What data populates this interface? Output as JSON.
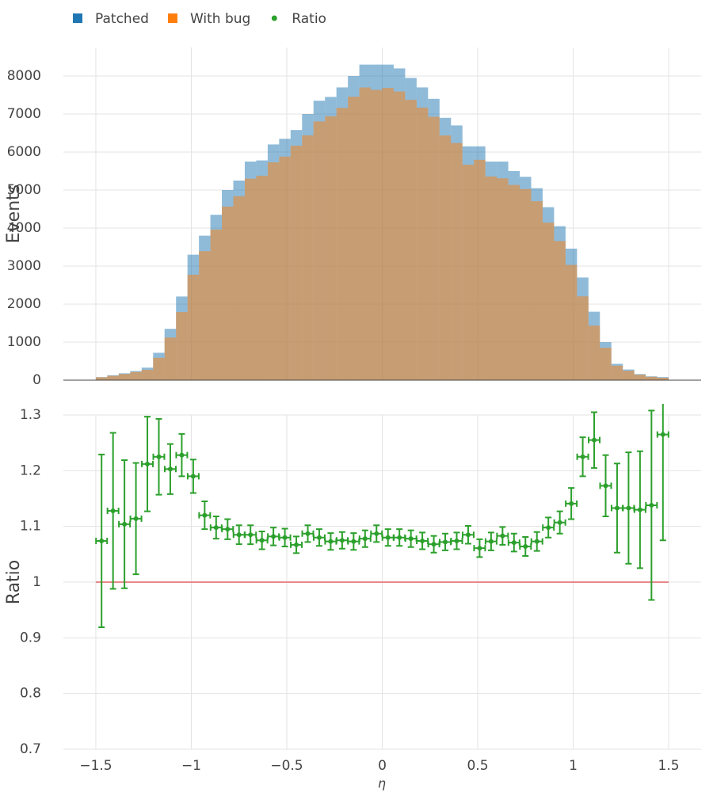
{
  "chart_data": [
    {
      "type": "histogram",
      "ylabel": "Events",
      "bins": [
        -1.5,
        -1.44,
        -1.38,
        -1.32,
        -1.26,
        -1.2,
        -1.14,
        -1.08,
        -1.02,
        -0.96,
        -0.9,
        -0.84,
        -0.78,
        -0.72,
        -0.66,
        -0.6,
        -0.54,
        -0.48,
        -0.42,
        -0.36,
        -0.3,
        -0.24,
        -0.18,
        -0.12,
        -0.06,
        0,
        0.06,
        0.12,
        0.18,
        0.24,
        0.3,
        0.36,
        0.42,
        0.48,
        0.54,
        0.6,
        0.66,
        0.72,
        0.78,
        0.84,
        0.9,
        0.96,
        1.02,
        1.08,
        1.14,
        1.2,
        1.26,
        1.32,
        1.38,
        1.44,
        1.5
      ],
      "series": [
        {
          "name": "Patched",
          "color": "#1f77b4",
          "values": [
            80,
            130,
            180,
            240,
            330,
            720,
            1350,
            2200,
            3300,
            3800,
            4350,
            5000,
            5250,
            5750,
            5780,
            6200,
            6350,
            6580,
            7000,
            7350,
            7450,
            7700,
            8000,
            8300,
            8300,
            8300,
            8200,
            7950,
            7700,
            7400,
            6900,
            6700,
            6150,
            6150,
            5750,
            5750,
            5500,
            5350,
            5050,
            4550,
            4050,
            3460,
            2700,
            1800,
            1000,
            430,
            280,
            160,
            100,
            80
          ]
        },
        {
          "name": "With bug",
          "color": "#ff7f0e",
          "values": [
            74,
            115,
            163,
            215,
            272,
            588,
            1122,
            1792,
            2773,
            3393,
            3962,
            4566,
            4839,
            5300,
            5377,
            5730,
            5880,
            6167,
            6440,
            6806,
            6943,
            7163,
            7456,
            7699,
            7636,
            7685,
            7593,
            7375,
            7169,
            6929,
            6437,
            6238,
            5668,
            5796,
            5359,
            5309,
            5135,
            5028,
            4706,
            4144,
            3659,
            3032,
            2204,
            1434,
            853,
            380,
            247,
            142,
            88,
            63
          ]
        }
      ],
      "xlim": [
        -1.67,
        1.67
      ],
      "ylim": [
        0,
        8750
      ],
      "yticks": [
        0,
        1000,
        2000,
        3000,
        4000,
        5000,
        6000,
        7000,
        8000
      ],
      "grid": true
    },
    {
      "type": "errorbar",
      "ylabel": "Ratio",
      "xlabel": "η",
      "series": [
        {
          "name": "Ratio",
          "color": "#2ca02c",
          "x": [
            -1.47,
            -1.41,
            -1.35,
            -1.29,
            -1.23,
            -1.17,
            -1.11,
            -1.05,
            -0.99,
            -0.93,
            -0.87,
            -0.81,
            -0.75,
            -0.69,
            -0.63,
            -0.57,
            -0.51,
            -0.45,
            -0.39,
            -0.33,
            -0.27,
            -0.21,
            -0.15,
            -0.09,
            -0.03,
            0.03,
            0.09,
            0.15,
            0.21,
            0.27,
            0.33,
            0.39,
            0.45,
            0.51,
            0.57,
            0.63,
            0.69,
            0.75,
            0.81,
            0.87,
            0.93,
            0.99,
            1.05,
            1.11,
            1.17,
            1.23,
            1.29,
            1.35,
            1.41,
            1.47
          ],
          "values": [
            1.074,
            1.128,
            1.104,
            1.114,
            1.212,
            1.225,
            1.203,
            1.228,
            1.19,
            1.12,
            1.098,
            1.095,
            1.085,
            1.085,
            1.075,
            1.082,
            1.08,
            1.067,
            1.087,
            1.08,
            1.073,
            1.075,
            1.073,
            1.078,
            1.087,
            1.08,
            1.08,
            1.078,
            1.074,
            1.068,
            1.072,
            1.074,
            1.085,
            1.061,
            1.073,
            1.083,
            1.071,
            1.064,
            1.073,
            1.098,
            1.107,
            1.141,
            1.225,
            1.255,
            1.173,
            1.133,
            1.133,
            1.13,
            1.138,
            1.265
          ],
          "errors": [
            0.155,
            0.14,
            0.115,
            0.1,
            0.085,
            0.068,
            0.045,
            0.038,
            0.03,
            0.025,
            0.02,
            0.018,
            0.017,
            0.017,
            0.016,
            0.016,
            0.016,
            0.015,
            0.015,
            0.015,
            0.015,
            0.015,
            0.015,
            0.015,
            0.015,
            0.015,
            0.015,
            0.015,
            0.015,
            0.015,
            0.015,
            0.015,
            0.016,
            0.016,
            0.016,
            0.016,
            0.016,
            0.017,
            0.017,
            0.018,
            0.02,
            0.028,
            0.035,
            0.05,
            0.055,
            0.08,
            0.1,
            0.105,
            0.17,
            0.19
          ]
        }
      ],
      "reference_line": {
        "y": 1,
        "x": [
          -1.5,
          1.5
        ],
        "color": "#e8888a"
      },
      "xlim": [
        -1.67,
        1.67
      ],
      "ylim": [
        0.7,
        1.3
      ],
      "xticks": [
        {
          "value": -1.5,
          "label": "−1.5"
        },
        {
          "value": -1,
          "label": "−1"
        },
        {
          "value": -0.5,
          "label": "−0.5"
        },
        0,
        0.5,
        1,
        1.5
      ],
      "yticks": [
        0.7,
        0.8,
        0.9,
        1,
        1.1,
        1.2,
        1.3
      ],
      "grid": true
    }
  ]
}
